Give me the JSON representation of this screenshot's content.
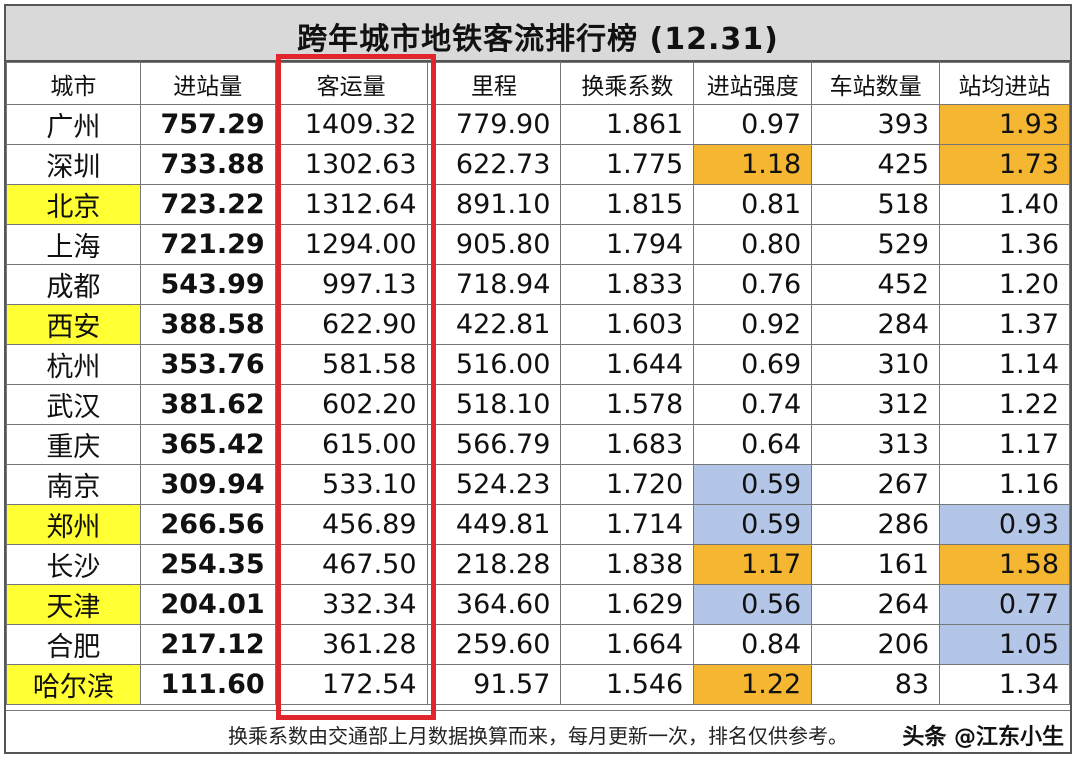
{
  "title": "跨年城市地铁客流排行榜 (12.31)",
  "headers": [
    "城市",
    "进站量",
    "客运量",
    "里程",
    "换乘系数",
    "进站强度",
    "车站数量",
    "站均进站"
  ],
  "rows": [
    {
      "city": "广州",
      "entry": "757.29",
      "ridership": "1409.32",
      "length": "779.90",
      "transfer": "1.861",
      "intensity": "0.97",
      "stations": "393",
      "avg": "1.93",
      "city_hl": "",
      "intensity_hl": "",
      "avg_hl": "orange"
    },
    {
      "city": "深圳",
      "entry": "733.88",
      "ridership": "1302.63",
      "length": "622.73",
      "transfer": "1.775",
      "intensity": "1.18",
      "stations": "425",
      "avg": "1.73",
      "city_hl": "",
      "intensity_hl": "orange",
      "avg_hl": "orange"
    },
    {
      "city": "北京",
      "entry": "723.22",
      "ridership": "1312.64",
      "length": "891.10",
      "transfer": "1.815",
      "intensity": "0.81",
      "stations": "518",
      "avg": "1.40",
      "city_hl": "yellow",
      "intensity_hl": "",
      "avg_hl": ""
    },
    {
      "city": "上海",
      "entry": "721.29",
      "ridership": "1294.00",
      "length": "905.80",
      "transfer": "1.794",
      "intensity": "0.80",
      "stations": "529",
      "avg": "1.36",
      "city_hl": "",
      "intensity_hl": "",
      "avg_hl": ""
    },
    {
      "city": "成都",
      "entry": "543.99",
      "ridership": "997.13",
      "length": "718.94",
      "transfer": "1.833",
      "intensity": "0.76",
      "stations": "452",
      "avg": "1.20",
      "city_hl": "",
      "intensity_hl": "",
      "avg_hl": ""
    },
    {
      "city": "西安",
      "entry": "388.58",
      "ridership": "622.90",
      "length": "422.81",
      "transfer": "1.603",
      "intensity": "0.92",
      "stations": "284",
      "avg": "1.37",
      "city_hl": "yellow",
      "intensity_hl": "",
      "avg_hl": ""
    },
    {
      "city": "杭州",
      "entry": "353.76",
      "ridership": "581.58",
      "length": "516.00",
      "transfer": "1.644",
      "intensity": "0.69",
      "stations": "310",
      "avg": "1.14",
      "city_hl": "",
      "intensity_hl": "",
      "avg_hl": ""
    },
    {
      "city": "武汉",
      "entry": "381.62",
      "ridership": "602.20",
      "length": "518.10",
      "transfer": "1.578",
      "intensity": "0.74",
      "stations": "312",
      "avg": "1.22",
      "city_hl": "",
      "intensity_hl": "",
      "avg_hl": ""
    },
    {
      "city": "重庆",
      "entry": "365.42",
      "ridership": "615.00",
      "length": "566.79",
      "transfer": "1.683",
      "intensity": "0.64",
      "stations": "313",
      "avg": "1.17",
      "city_hl": "",
      "intensity_hl": "",
      "avg_hl": ""
    },
    {
      "city": "南京",
      "entry": "309.94",
      "ridership": "533.10",
      "length": "524.23",
      "transfer": "1.720",
      "intensity": "0.59",
      "stations": "267",
      "avg": "1.16",
      "city_hl": "",
      "intensity_hl": "blue",
      "avg_hl": ""
    },
    {
      "city": "郑州",
      "entry": "266.56",
      "ridership": "456.89",
      "length": "449.81",
      "transfer": "1.714",
      "intensity": "0.59",
      "stations": "286",
      "avg": "0.93",
      "city_hl": "yellow",
      "intensity_hl": "blue",
      "avg_hl": "blue"
    },
    {
      "city": "长沙",
      "entry": "254.35",
      "ridership": "467.50",
      "length": "218.28",
      "transfer": "1.838",
      "intensity": "1.17",
      "stations": "161",
      "avg": "1.58",
      "city_hl": "",
      "intensity_hl": "orange",
      "avg_hl": "orange"
    },
    {
      "city": "天津",
      "entry": "204.01",
      "ridership": "332.34",
      "length": "364.60",
      "transfer": "1.629",
      "intensity": "0.56",
      "stations": "264",
      "avg": "0.77",
      "city_hl": "yellow",
      "intensity_hl": "blue",
      "avg_hl": "blue"
    },
    {
      "city": "合肥",
      "entry": "217.12",
      "ridership": "361.28",
      "length": "259.60",
      "transfer": "1.664",
      "intensity": "0.84",
      "stations": "206",
      "avg": "1.05",
      "city_hl": "",
      "intensity_hl": "",
      "avg_hl": "blue"
    },
    {
      "city": "哈尔滨",
      "entry": "111.60",
      "ridership": "172.54",
      "length": "91.57",
      "transfer": "1.546",
      "intensity": "1.22",
      "stations": "83",
      "avg": "1.34",
      "city_hl": "yellow",
      "intensity_hl": "orange",
      "avg_hl": ""
    }
  ],
  "footer": "换乘系数由交通部上月数据换算而来，每月更新一次，排名仅供参考。",
  "watermark": "头条 @江东小生",
  "colors": {
    "yellow": "#ffff33",
    "orange": "#f5b731",
    "blue": "#b4c6e7",
    "red_box": "#e0262c"
  }
}
